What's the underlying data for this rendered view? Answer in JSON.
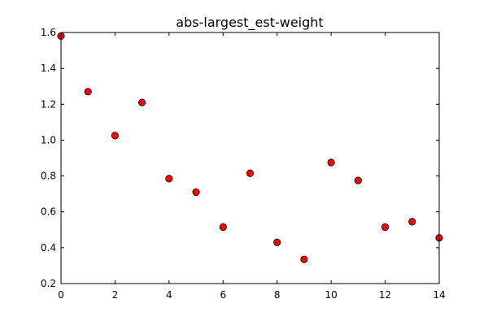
{
  "chart_data": {
    "type": "scatter",
    "title": "abs-largest_est-weight",
    "xlabel": "",
    "ylabel": "",
    "xlim": [
      0,
      14
    ],
    "ylim": [
      0.2,
      1.6
    ],
    "x_ticks": [
      0,
      2,
      4,
      6,
      8,
      10,
      12,
      14
    ],
    "y_ticks": [
      0.2,
      0.4,
      0.6,
      0.8,
      1.0,
      1.2,
      1.4,
      1.6
    ],
    "x_tick_labels": [
      "0",
      "2",
      "4",
      "6",
      "8",
      "10",
      "12",
      "14"
    ],
    "y_tick_labels": [
      "0.2",
      "0.4",
      "0.6",
      "0.8",
      "1.0",
      "1.2",
      "1.4",
      "1.6"
    ],
    "grid": false,
    "marker_color": "#ff0000",
    "marker_edge_color": "#000000",
    "series": [
      {
        "x": [
          0,
          1,
          2,
          3,
          4,
          5,
          6,
          7,
          8,
          9,
          10,
          11,
          12,
          13,
          14
        ],
        "y": [
          1.58,
          1.27,
          1.025,
          1.21,
          0.785,
          0.71,
          0.515,
          0.815,
          0.43,
          0.335,
          0.875,
          0.775,
          0.515,
          0.545,
          0.455
        ]
      }
    ]
  }
}
